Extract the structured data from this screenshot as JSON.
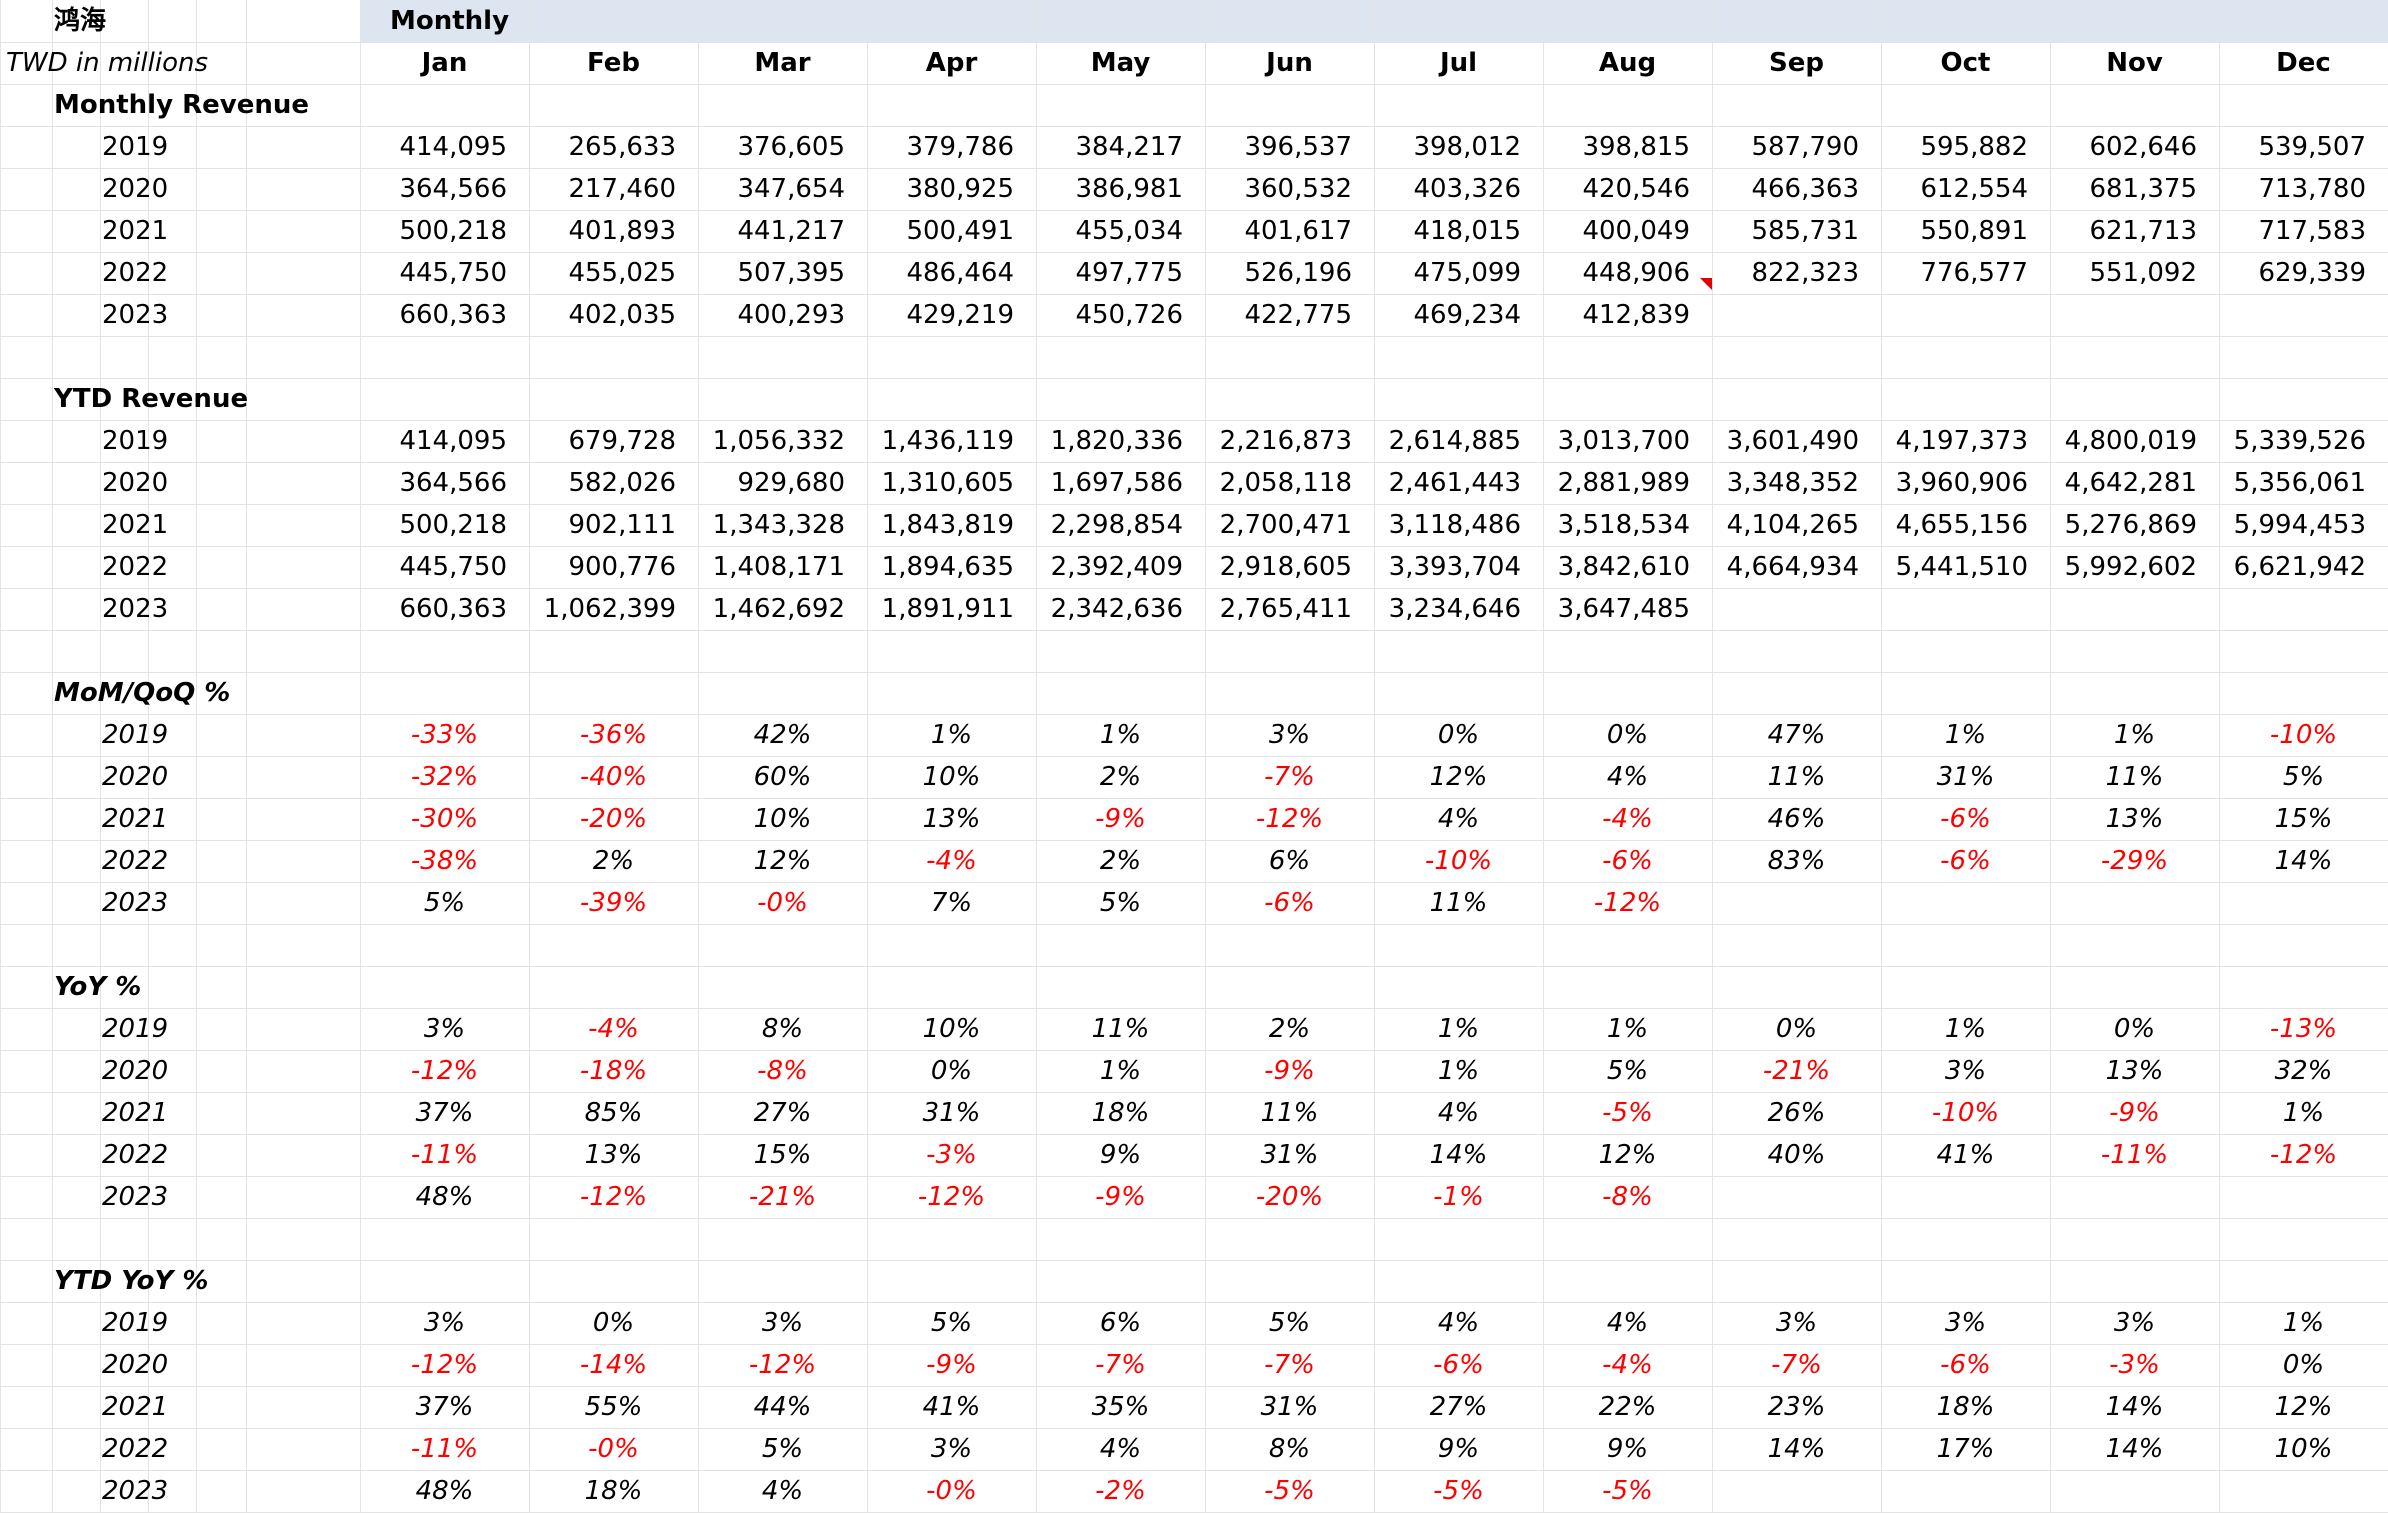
{
  "header": {
    "company": "鸿海",
    "band_title": "Monthly",
    "unit_note": "TWD in millions"
  },
  "months": [
    "Jan",
    "Feb",
    "Mar",
    "Apr",
    "May",
    "Jun",
    "Jul",
    "Aug",
    "Sep",
    "Oct",
    "Nov",
    "Dec"
  ],
  "sections": [
    {
      "key": "monthly_revenue",
      "title": "Monthly Revenue",
      "style": "number",
      "rows": [
        {
          "year": "2019",
          "values": [
            "414,095",
            "265,633",
            "376,605",
            "379,786",
            "384,217",
            "396,537",
            "398,012",
            "398,815",
            "587,790",
            "595,882",
            "602,646",
            "539,507"
          ]
        },
        {
          "year": "2020",
          "values": [
            "364,566",
            "217,460",
            "347,654",
            "380,925",
            "386,981",
            "360,532",
            "403,326",
            "420,546",
            "466,363",
            "612,554",
            "681,375",
            "713,780"
          ]
        },
        {
          "year": "2021",
          "values": [
            "500,218",
            "401,893",
            "441,217",
            "500,491",
            "455,034",
            "401,617",
            "418,015",
            "400,049",
            "585,731",
            "550,891",
            "621,713",
            "717,583"
          ]
        },
        {
          "year": "2022",
          "values": [
            "445,750",
            "455,025",
            "507,395",
            "486,464",
            "497,775",
            "526,196",
            "475,099",
            "448,906",
            "822,323",
            "776,577",
            "551,092",
            "629,339"
          ]
        },
        {
          "year": "2023",
          "values": [
            "660,363",
            "402,035",
            "400,293",
            "429,219",
            "450,726",
            "422,775",
            "469,234",
            "412,839",
            "",
            "",
            "",
            ""
          ]
        }
      ]
    },
    {
      "key": "ytd_revenue",
      "title": "YTD Revenue",
      "style": "number",
      "rows": [
        {
          "year": "2019",
          "values": [
            "414,095",
            "679,728",
            "1,056,332",
            "1,436,119",
            "1,820,336",
            "2,216,873",
            "2,614,885",
            "3,013,700",
            "3,601,490",
            "4,197,373",
            "4,800,019",
            "5,339,526"
          ]
        },
        {
          "year": "2020",
          "values": [
            "364,566",
            "582,026",
            "929,680",
            "1,310,605",
            "1,697,586",
            "2,058,118",
            "2,461,443",
            "2,881,989",
            "3,348,352",
            "3,960,906",
            "4,642,281",
            "5,356,061"
          ]
        },
        {
          "year": "2021",
          "values": [
            "500,218",
            "902,111",
            "1,343,328",
            "1,843,819",
            "2,298,854",
            "2,700,471",
            "3,118,486",
            "3,518,534",
            "4,104,265",
            "4,655,156",
            "5,276,869",
            "5,994,453"
          ]
        },
        {
          "year": "2022",
          "values": [
            "445,750",
            "900,776",
            "1,408,171",
            "1,894,635",
            "2,392,409",
            "2,918,605",
            "3,393,704",
            "3,842,610",
            "4,664,934",
            "5,441,510",
            "5,992,602",
            "6,621,942"
          ]
        },
        {
          "year": "2023",
          "values": [
            "660,363",
            "1,062,399",
            "1,462,692",
            "1,891,911",
            "2,342,636",
            "2,765,411",
            "3,234,646",
            "3,647,485",
            "",
            "",
            "",
            ""
          ]
        }
      ]
    },
    {
      "key": "mom_qoq",
      "title": "MoM/QoQ %",
      "style": "percent",
      "rows": [
        {
          "year": "2019",
          "values": [
            "-33%",
            "-36%",
            "42%",
            "1%",
            "1%",
            "3%",
            "0%",
            "0%",
            "47%",
            "1%",
            "1%",
            "-10%"
          ]
        },
        {
          "year": "2020",
          "values": [
            "-32%",
            "-40%",
            "60%",
            "10%",
            "2%",
            "-7%",
            "12%",
            "4%",
            "11%",
            "31%",
            "11%",
            "5%"
          ]
        },
        {
          "year": "2021",
          "values": [
            "-30%",
            "-20%",
            "10%",
            "13%",
            "-9%",
            "-12%",
            "4%",
            "-4%",
            "46%",
            "-6%",
            "13%",
            "15%"
          ]
        },
        {
          "year": "2022",
          "values": [
            "-38%",
            "2%",
            "12%",
            "-4%",
            "2%",
            "6%",
            "-10%",
            "-6%",
            "83%",
            "-6%",
            "-29%",
            "14%"
          ]
        },
        {
          "year": "2023",
          "values": [
            "5%",
            "-39%",
            "-0%",
            "7%",
            "5%",
            "-6%",
            "11%",
            "-12%",
            "",
            "",
            "",
            ""
          ]
        }
      ]
    },
    {
      "key": "yoy",
      "title": "YoY %",
      "style": "percent",
      "rows": [
        {
          "year": "2019",
          "values": [
            "3%",
            "-4%",
            "8%",
            "10%",
            "11%",
            "2%",
            "1%",
            "1%",
            "0%",
            "1%",
            "0%",
            "-13%"
          ]
        },
        {
          "year": "2020",
          "values": [
            "-12%",
            "-18%",
            "-8%",
            "0%",
            "1%",
            "-9%",
            "1%",
            "5%",
            "-21%",
            "3%",
            "13%",
            "32%"
          ]
        },
        {
          "year": "2021",
          "values": [
            "37%",
            "85%",
            "27%",
            "31%",
            "18%",
            "11%",
            "4%",
            "-5%",
            "26%",
            "-10%",
            "-9%",
            "1%"
          ]
        },
        {
          "year": "2022",
          "values": [
            "-11%",
            "13%",
            "15%",
            "-3%",
            "9%",
            "31%",
            "14%",
            "12%",
            "40%",
            "41%",
            "-11%",
            "-12%"
          ]
        },
        {
          "year": "2023",
          "values": [
            "48%",
            "-12%",
            "-21%",
            "-12%",
            "-9%",
            "-20%",
            "-1%",
            "-8%",
            "",
            "",
            "",
            ""
          ]
        }
      ]
    },
    {
      "key": "ytd_yoy",
      "title": "YTD YoY %",
      "style": "percent",
      "rows": [
        {
          "year": "2019",
          "values": [
            "3%",
            "0%",
            "3%",
            "5%",
            "6%",
            "5%",
            "4%",
            "4%",
            "3%",
            "3%",
            "3%",
            "1%"
          ]
        },
        {
          "year": "2020",
          "values": [
            "-12%",
            "-14%",
            "-12%",
            "-9%",
            "-7%",
            "-7%",
            "-6%",
            "-4%",
            "-7%",
            "-6%",
            "-3%",
            "0%"
          ]
        },
        {
          "year": "2021",
          "values": [
            "37%",
            "55%",
            "44%",
            "41%",
            "35%",
            "31%",
            "27%",
            "22%",
            "23%",
            "18%",
            "14%",
            "12%"
          ]
        },
        {
          "year": "2022",
          "values": [
            "-11%",
            "-0%",
            "5%",
            "3%",
            "4%",
            "8%",
            "9%",
            "9%",
            "14%",
            "17%",
            "14%",
            "10%"
          ]
        },
        {
          "year": "2023",
          "values": [
            "48%",
            "18%",
            "4%",
            "-0%",
            "-2%",
            "-5%",
            "-5%",
            "-5%",
            "",
            "",
            "",
            ""
          ]
        }
      ]
    }
  ],
  "colors": {
    "header_band": "#dde6f0",
    "negative": "#ff0000",
    "gridline": "#e3e3e3"
  }
}
